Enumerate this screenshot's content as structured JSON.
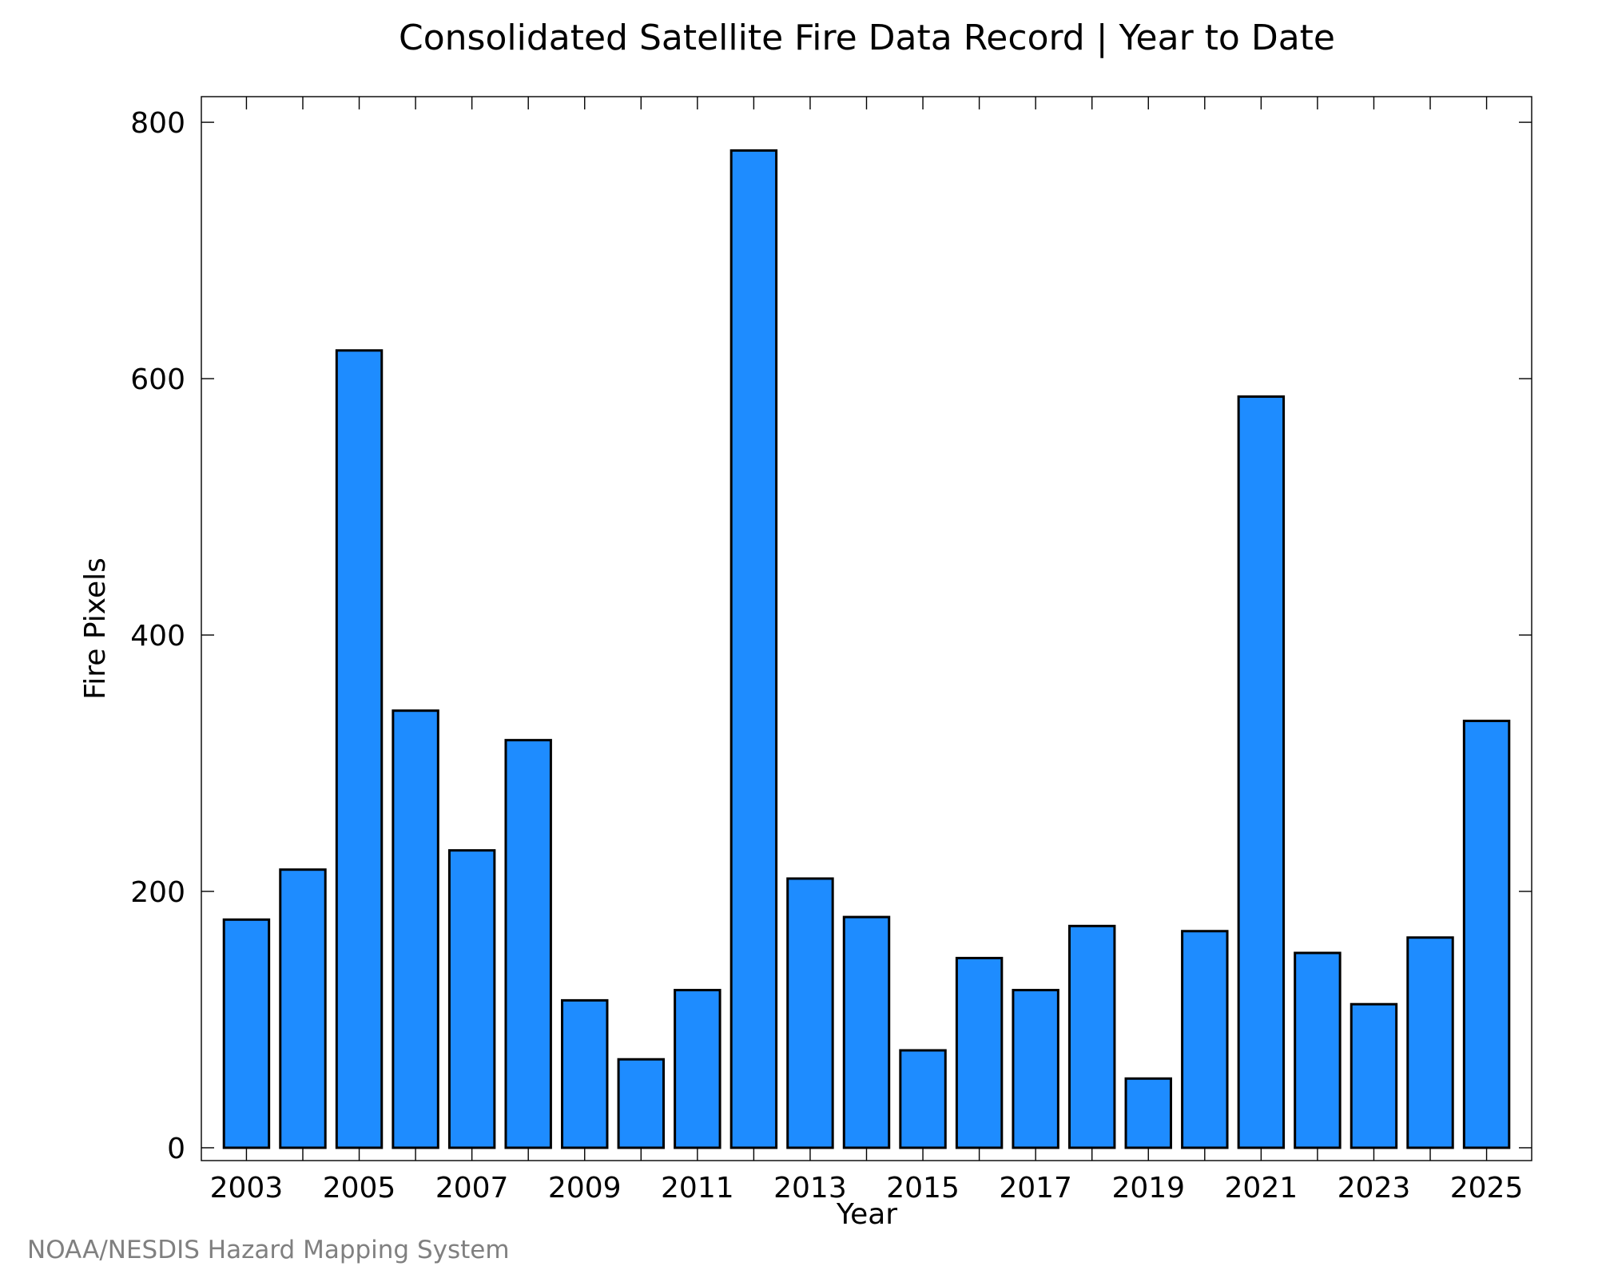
{
  "chart_data": {
    "type": "bar",
    "title": "Consolidated Satellite Fire Data Record | Year to Date",
    "xlabel": "Year",
    "ylabel": "Fire Pixels",
    "credit": "NOAA/NESDIS Hazard Mapping System",
    "categories": [
      "2003",
      "2004",
      "2005",
      "2006",
      "2007",
      "2008",
      "2009",
      "2010",
      "2011",
      "2012",
      "2013",
      "2014",
      "2015",
      "2016",
      "2017",
      "2018",
      "2019",
      "2020",
      "2021",
      "2022",
      "2023",
      "2024",
      "2025"
    ],
    "values": [
      178,
      217,
      622,
      341,
      232,
      318,
      115,
      69,
      123,
      778,
      210,
      180,
      76,
      148,
      123,
      173,
      54,
      169,
      586,
      152,
      112,
      164,
      333
    ],
    "x_tick_labels": [
      "2003",
      "2005",
      "2007",
      "2009",
      "2011",
      "2013",
      "2015",
      "2017",
      "2019",
      "2021",
      "2023",
      "2025"
    ],
    "y_ticks": [
      "0",
      "200",
      "400",
      "600",
      "800"
    ],
    "ylim": [
      -10,
      820
    ],
    "grid": false,
    "bar_color": "#1E8CFF",
    "bar_edge_color": "#000000"
  }
}
